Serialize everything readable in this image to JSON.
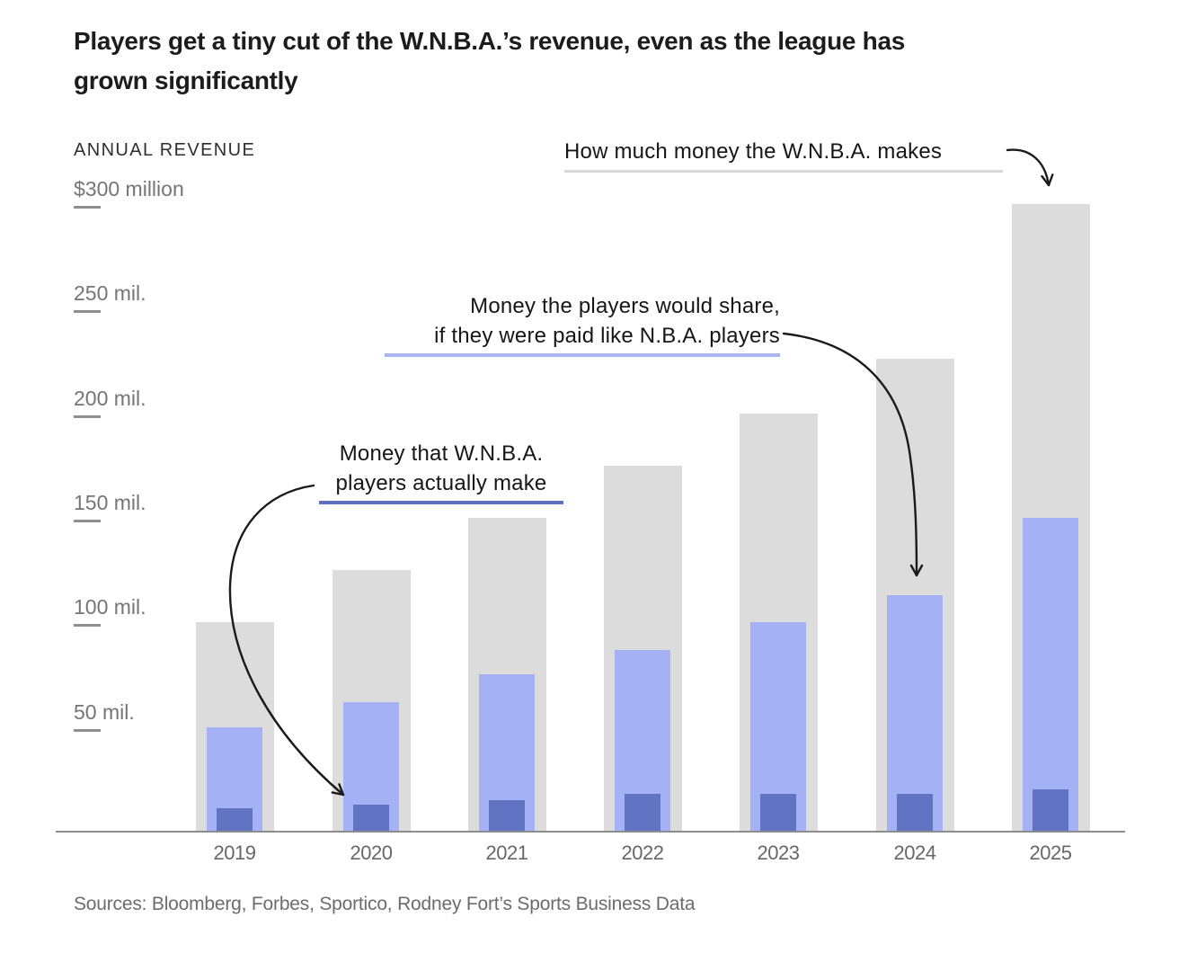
{
  "chart_data": {
    "type": "bar",
    "title": "Players get a tiny cut of the W.N.B.A.’s revenue, even as the league has grown significantly",
    "title_lines": [
      "Players get a tiny cut of the W.N.B.A.’s revenue, even as the league has",
      "grown significantly"
    ],
    "axis_title": "ANNUAL REVENUE",
    "xlabel": "",
    "ylabel": "Annual revenue ($ millions)",
    "ylim": [
      0,
      300
    ],
    "grid": false,
    "legend_position": "inline-annotations",
    "categories": [
      "2019",
      "2020",
      "2021",
      "2022",
      "2023",
      "2024",
      "2025"
    ],
    "series": [
      {
        "id": "total-revenue",
        "name": "How much money the W.N.B.A. makes",
        "color": "#dcdcdc",
        "values": [
          100,
          125,
          150,
          175,
          200,
          226,
          300
        ]
      },
      {
        "id": "nba-style-share",
        "name": "Money the players would share, if they were paid like N.B.A. players",
        "color": "#a4b2f5",
        "values": [
          50,
          62,
          75,
          87,
          100,
          113,
          150
        ]
      },
      {
        "id": "actual-player-pay",
        "name": "Money that W.N.B.A. players actually make",
        "color": "#6174c4",
        "values": [
          11,
          13,
          15,
          18,
          18,
          18,
          20
        ]
      }
    ],
    "yticks": [
      {
        "value": 300,
        "label": "$300 million"
      },
      {
        "value": 250,
        "label": "250 mil."
      },
      {
        "value": 200,
        "label": "200 mil."
      },
      {
        "value": 150,
        "label": "150 mil."
      },
      {
        "value": 100,
        "label": "100 mil."
      },
      {
        "value": 50,
        "label": "50 mil."
      }
    ],
    "annotations": [
      {
        "id": "total",
        "text": "How much money the W.N.B.A. makes",
        "underline_color": "#d8d8d8",
        "points_to": "2025 total revenue bar"
      },
      {
        "id": "share",
        "line1": "Money the players would share,",
        "line2": "if they were paid like N.B.A. players",
        "underline_color": "#a9b6f3",
        "points_to": "2024 hypothetical share bar"
      },
      {
        "id": "actual",
        "line1": "Money that W.N.B.A.",
        "line2": "players actually make",
        "underline_color": "#5b70bf",
        "points_to": "2020 actual pay bar"
      }
    ],
    "source": "Sources: Bloomberg, Forbes, Sportico, Rodney Fort’s Sports Business Data"
  },
  "colors": {
    "background": "#ffffff",
    "title_text": "#1c1c1c",
    "axis_text": "#757575",
    "axis_line": "#8d8d8d",
    "annotation_text": "#161616",
    "arrow": "#1a1a1a",
    "bar_total": "#dcdcdc",
    "bar_share": "#a4b2f5",
    "bar_actual": "#6174c4"
  }
}
